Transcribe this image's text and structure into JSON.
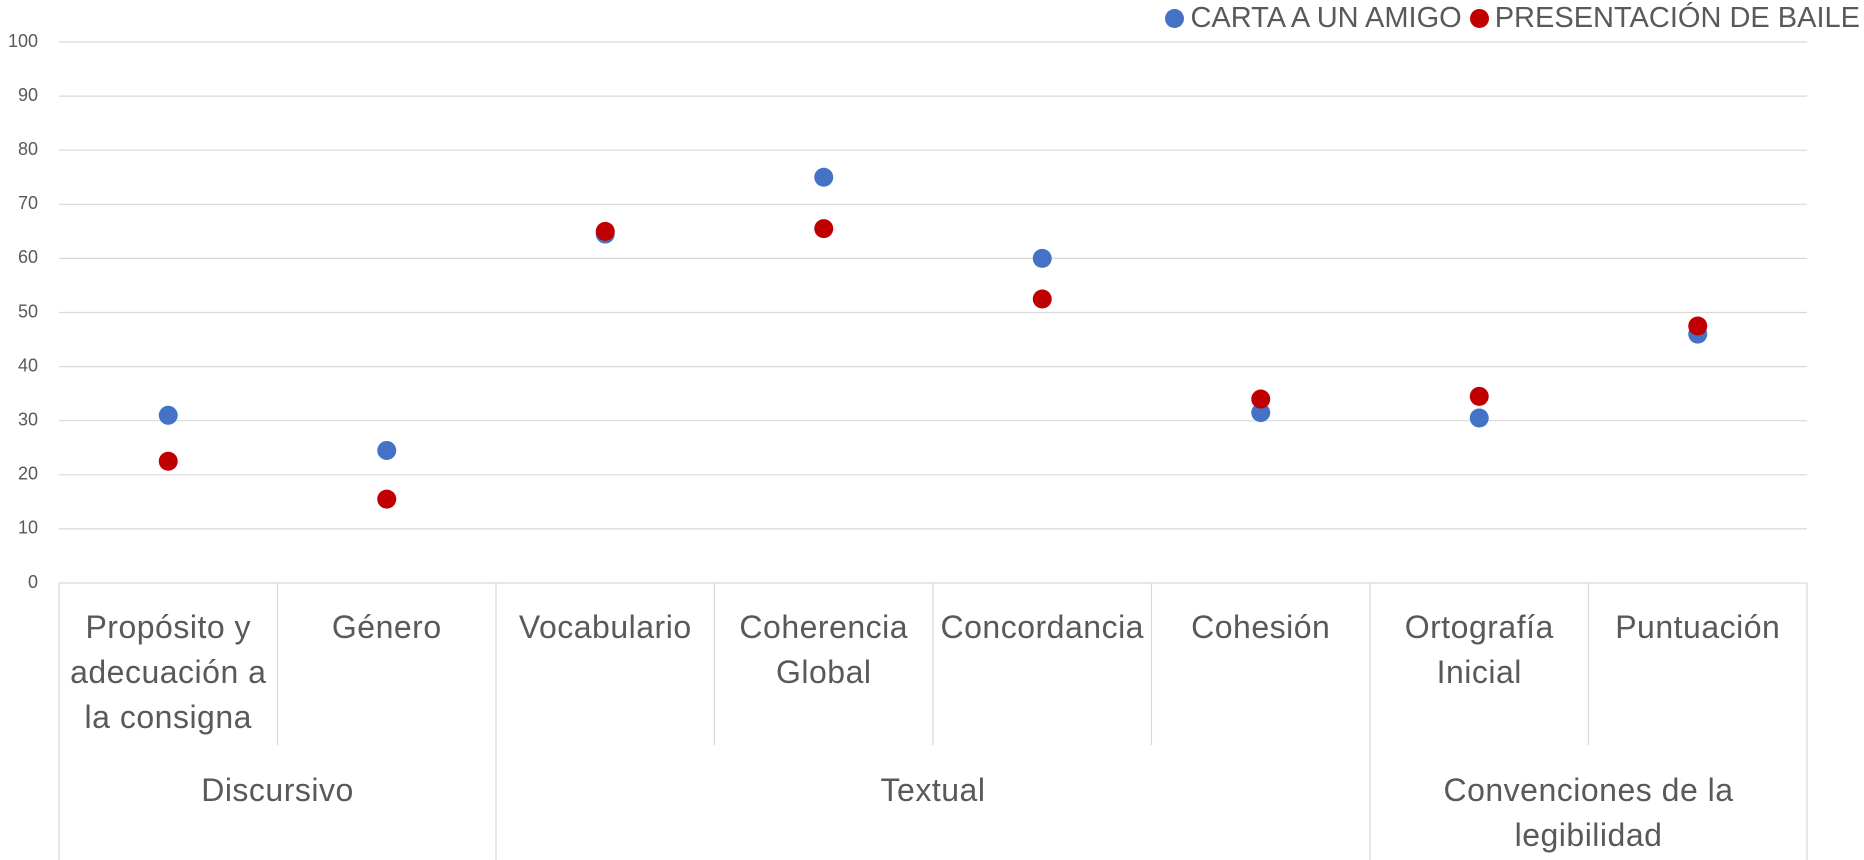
{
  "chart_data": {
    "type": "scatter",
    "categories": [
      "Propósito y adecuación a la consigna",
      "Género",
      "Vocabulario",
      "Coherencia Global",
      "Concordancia",
      "Cohesión",
      "Ortografía Inicial",
      "Puntuación"
    ],
    "groups": [
      {
        "name": "Discursivo",
        "count": 2
      },
      {
        "name": "Textual",
        "count": 4
      },
      {
        "name": "Convenciones de la legibilidad",
        "count": 2
      }
    ],
    "series": [
      {
        "name": "CARTA A UN AMIGO",
        "color": "#4472c4",
        "values": [
          31,
          24.5,
          64.5,
          75,
          60,
          31.5,
          30.5,
          46
        ]
      },
      {
        "name": "PRESENTACIÓN DE BAILE",
        "color": "#c00000",
        "values": [
          22.5,
          15.5,
          65,
          65.5,
          52.5,
          34,
          34.5,
          47.5
        ]
      }
    ],
    "ylim": [
      0,
      100
    ],
    "yticks": [
      0,
      10,
      20,
      30,
      40,
      50,
      60,
      70,
      80,
      90,
      100
    ],
    "grid": true,
    "legend": "top-right"
  }
}
